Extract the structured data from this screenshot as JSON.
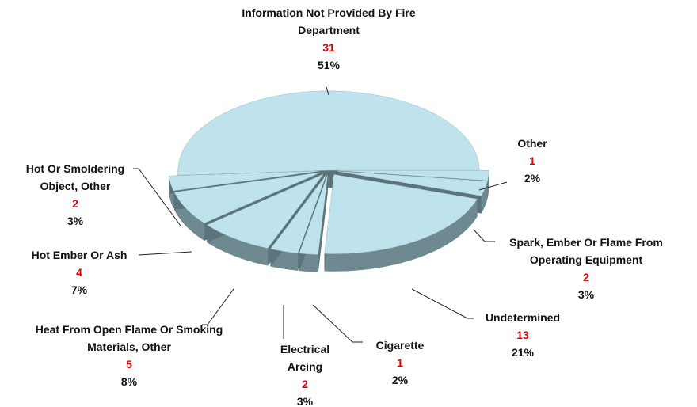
{
  "chart_data": {
    "type": "pie",
    "categories": [
      "Information Not Provided By Fire Department",
      "Other",
      "Spark, Ember Or Flame From Operating Equipment",
      "Undetermined",
      "Cigarette",
      "Electrical Arcing",
      "Heat From Open Flame Or Smoking Materials, Other",
      "Hot Ember Or Ash",
      "Hot Or Smoldering Object, Other"
    ],
    "counts": [
      31,
      1,
      2,
      13,
      1,
      2,
      5,
      4,
      2
    ],
    "values": [
      51,
      2,
      3,
      21,
      2,
      3,
      8,
      7,
      3
    ],
    "value_labels": [
      "51%",
      "2%",
      "3%",
      "21%",
      "2%",
      "3%",
      "8%",
      "7%",
      "3%"
    ],
    "color": "#bfe3ec"
  }
}
